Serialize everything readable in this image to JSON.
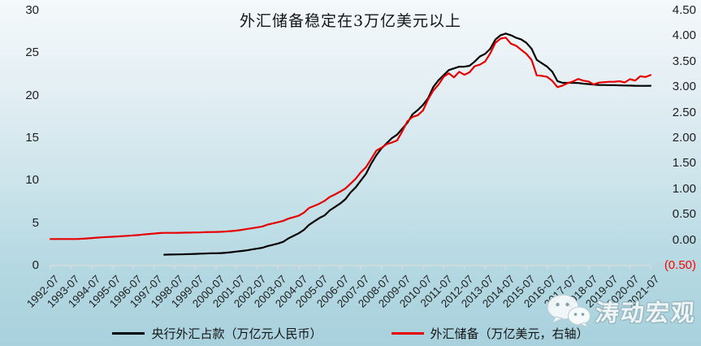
{
  "chart_data": {
    "type": "line",
    "title": "外汇储备稳定在3万亿美元以上",
    "grid": false,
    "legend_position": "bottom",
    "x": [
      "1992-07",
      "1992-10",
      "1993-01",
      "1993-04",
      "1993-07",
      "1993-10",
      "1994-01",
      "1994-04",
      "1994-07",
      "1994-10",
      "1995-01",
      "1995-04",
      "1995-07",
      "1995-10",
      "1996-01",
      "1996-04",
      "1996-07",
      "1996-10",
      "1997-01",
      "1997-04",
      "1997-07",
      "1997-10",
      "1998-01",
      "1998-04",
      "1998-07",
      "1998-10",
      "1999-01",
      "1999-04",
      "1999-07",
      "1999-10",
      "2000-01",
      "2000-04",
      "2000-07",
      "2000-10",
      "2001-01",
      "2001-04",
      "2001-07",
      "2001-10",
      "2002-01",
      "2002-04",
      "2002-07",
      "2002-10",
      "2003-01",
      "2003-04",
      "2003-07",
      "2003-10",
      "2004-01",
      "2004-04",
      "2004-07",
      "2004-10",
      "2005-01",
      "2005-04",
      "2005-07",
      "2005-10",
      "2006-01",
      "2006-04",
      "2006-07",
      "2006-10",
      "2007-01",
      "2007-04",
      "2007-07",
      "2007-10",
      "2008-01",
      "2008-04",
      "2008-07",
      "2008-10",
      "2009-01",
      "2009-04",
      "2009-07",
      "2009-10",
      "2010-01",
      "2010-04",
      "2010-07",
      "2010-10",
      "2011-01",
      "2011-04",
      "2011-07",
      "2011-10",
      "2012-01",
      "2012-04",
      "2012-07",
      "2012-10",
      "2013-01",
      "2013-04",
      "2013-07",
      "2013-10",
      "2014-01",
      "2014-04",
      "2014-07",
      "2014-10",
      "2015-01",
      "2015-04",
      "2015-07",
      "2015-10",
      "2016-01",
      "2016-04",
      "2016-07",
      "2016-10",
      "2017-01",
      "2017-04",
      "2017-07",
      "2017-10",
      "2018-01",
      "2018-04",
      "2018-07",
      "2018-10",
      "2019-01",
      "2019-04",
      "2019-07",
      "2019-10",
      "2020-01",
      "2020-04",
      "2020-07",
      "2020-10",
      "2021-01",
      "2021-04",
      "2021-07"
    ],
    "series": [
      {
        "name": "央行外汇占款（万亿元人民币）",
        "axis": "left",
        "color": "#000000",
        "values": [
          null,
          null,
          null,
          null,
          null,
          null,
          null,
          null,
          null,
          null,
          null,
          null,
          null,
          null,
          null,
          null,
          null,
          null,
          null,
          null,
          null,
          null,
          1.28,
          1.3,
          1.31,
          1.32,
          1.34,
          1.36,
          1.38,
          1.4,
          1.42,
          1.44,
          1.45,
          1.47,
          1.52,
          1.58,
          1.65,
          1.72,
          1.8,
          1.9,
          2.0,
          2.1,
          2.3,
          2.45,
          2.6,
          2.8,
          3.2,
          3.5,
          3.8,
          4.2,
          4.8,
          5.2,
          5.6,
          5.9,
          6.5,
          6.9,
          7.3,
          7.8,
          8.6,
          9.2,
          10.0,
          10.8,
          12.0,
          13.0,
          13.8,
          14.4,
          15.0,
          15.4,
          16.1,
          16.8,
          17.8,
          18.3,
          18.9,
          19.7,
          21.0,
          21.8,
          22.4,
          23.0,
          23.2,
          23.4,
          23.4,
          23.5,
          24.0,
          24.6,
          24.9,
          25.5,
          26.6,
          27.1,
          27.3,
          27.1,
          26.8,
          26.6,
          26.2,
          25.5,
          24.2,
          23.8,
          23.4,
          22.8,
          21.7,
          21.5,
          21.5,
          21.5,
          21.48,
          21.4,
          21.35,
          21.3,
          21.25,
          21.24,
          21.23,
          21.22,
          21.2,
          21.18,
          21.17,
          21.15,
          21.14,
          21.14,
          21.15
        ]
      },
      {
        "name": "外汇储备（万亿美元，右轴）",
        "axis": "right",
        "color": "#e60000",
        "values": [
          0.02,
          0.02,
          0.02,
          0.02,
          0.021,
          0.021,
          0.025,
          0.032,
          0.04,
          0.047,
          0.054,
          0.06,
          0.066,
          0.071,
          0.078,
          0.085,
          0.092,
          0.099,
          0.11,
          0.119,
          0.128,
          0.137,
          0.141,
          0.141,
          0.141,
          0.143,
          0.146,
          0.147,
          0.149,
          0.152,
          0.156,
          0.158,
          0.16,
          0.163,
          0.169,
          0.177,
          0.186,
          0.2,
          0.218,
          0.234,
          0.25,
          0.268,
          0.304,
          0.326,
          0.35,
          0.378,
          0.42,
          0.449,
          0.48,
          0.538,
          0.63,
          0.67,
          0.715,
          0.769,
          0.845,
          0.895,
          0.95,
          1.01,
          1.105,
          1.202,
          1.33,
          1.43,
          1.59,
          1.756,
          1.81,
          1.88,
          1.913,
          1.954,
          2.13,
          2.33,
          2.415,
          2.447,
          2.54,
          2.76,
          2.932,
          3.046,
          3.2,
          3.27,
          3.19,
          3.3,
          3.24,
          3.29,
          3.41,
          3.44,
          3.5,
          3.66,
          3.87,
          3.95,
          3.97,
          3.85,
          3.81,
          3.73,
          3.65,
          3.53,
          3.23,
          3.22,
          3.2,
          3.12,
          2.998,
          3.03,
          3.08,
          3.11,
          3.16,
          3.125,
          3.11,
          3.053,
          3.088,
          3.095,
          3.104,
          3.105,
          3.115,
          3.091,
          3.154,
          3.128,
          3.211,
          3.198,
          3.236
        ]
      }
    ],
    "left_axis": {
      "min": 0,
      "max": 30,
      "step": 5,
      "ticks": [
        {
          "label": "30",
          "value": 30
        },
        {
          "label": "25",
          "value": 25
        },
        {
          "label": "20",
          "value": 20
        },
        {
          "label": "15",
          "value": 15
        },
        {
          "label": "10",
          "value": 10
        },
        {
          "label": "5",
          "value": 5
        },
        {
          "label": "0",
          "value": 0
        }
      ]
    },
    "right_axis": {
      "min": -0.5,
      "max": 4.5,
      "step": 0.5,
      "ticks": [
        {
          "label": "4.50",
          "value": 4.5
        },
        {
          "label": "4.00",
          "value": 4.0
        },
        {
          "label": "3.50",
          "value": 3.5
        },
        {
          "label": "3.00",
          "value": 3.0
        },
        {
          "label": "2.50",
          "value": 2.5
        },
        {
          "label": "2.00",
          "value": 2.0
        },
        {
          "label": "1.50",
          "value": 1.5
        },
        {
          "label": "1.00",
          "value": 1.0
        },
        {
          "label": "0.50",
          "value": 0.5
        },
        {
          "label": "0.00",
          "value": 0.0
        },
        {
          "label": "(0.50)",
          "value": -0.5,
          "color": "#ff0000"
        }
      ]
    },
    "x_tick_labels": [
      "1992-07",
      "1993-07",
      "1994-07",
      "1995-07",
      "1996-07",
      "1997-07",
      "1998-07",
      "1999-07",
      "2000-07",
      "2001-07",
      "2002-07",
      "2003-07",
      "2004-07",
      "2005-07",
      "2006-07",
      "2007-07",
      "2008-07",
      "2009-07",
      "2010-07",
      "2011-07",
      "2012-07",
      "2013-07",
      "2014-07",
      "2015-07",
      "2016-07",
      "2017-07",
      "2018-07",
      "2019-07",
      "2020-07",
      "2021-07"
    ]
  },
  "watermark": {
    "text": "涛动宏观",
    "icon": "wechat-icon"
  },
  "colors": {
    "background_top": "#f4f9fb",
    "background_bottom": "#a8d1dd",
    "axis_line": "#dcdcdc",
    "axis_text": "#1f1f1f",
    "negative_label": "#ff0000",
    "series_black": "#000000",
    "series_red": "#e60000"
  }
}
